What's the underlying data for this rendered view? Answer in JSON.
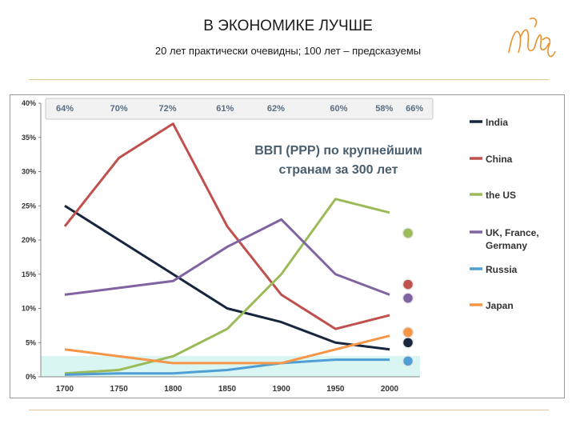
{
  "header": {
    "title": "В ЭКОНОМИКЕ ЛУЧШЕ",
    "subtitle": "20 лет практически очевидны; 100 лет – предсказуемы"
  },
  "chart_data": {
    "type": "line",
    "title": "ВВП (PPP) по крупнейшим странам за 300 лет",
    "x": [
      1700,
      1750,
      1800,
      1850,
      1900,
      1950,
      2000
    ],
    "ylim": [
      0,
      40
    ],
    "yticks": [
      "0%",
      "5%",
      "10%",
      "15%",
      "20%",
      "25%",
      "30%",
      "35%",
      "40%"
    ],
    "xticks": [
      "1700",
      "1750",
      "1800",
      "1850",
      "1900",
      "1950",
      "2000"
    ],
    "top_shares": [
      {
        "x": 1700,
        "label": "64%"
      },
      {
        "x": 1750,
        "label": "70%"
      },
      {
        "x": 1795,
        "label": "72%"
      },
      {
        "x": 1848,
        "label": "61%"
      },
      {
        "x": 1895,
        "label": "62%"
      },
      {
        "x": 1953,
        "label": "60%"
      },
      {
        "x": 1995,
        "label": "58%"
      },
      {
        "x": 2023,
        "label": "66%"
      }
    ],
    "series": [
      {
        "name": "India",
        "color": "#17253d",
        "values": [
          25,
          20,
          15,
          10,
          8,
          5,
          4
        ],
        "projection": 5
      },
      {
        "name": "China",
        "color": "#c0504d",
        "values": [
          22,
          32,
          37,
          22,
          12,
          7,
          9
        ],
        "projection": 13.5
      },
      {
        "name": "the US",
        "color": "#9bbb59",
        "values": [
          0.5,
          1,
          3,
          7,
          15,
          26,
          24
        ],
        "projection": 21
      },
      {
        "name": "UK, France, Germany",
        "color": "#8064a2",
        "values": [
          12,
          13,
          14,
          19,
          23,
          15,
          12
        ],
        "projection": 11.5
      },
      {
        "name": "Russia",
        "color": "#4f9fd4",
        "values": [
          0.3,
          0.5,
          0.5,
          1,
          2,
          2.5,
          2.5
        ],
        "projection": 2.3
      },
      {
        "name": "Japan",
        "color": "#f79646",
        "values": [
          4,
          3,
          2,
          2,
          2,
          4,
          6
        ],
        "projection": 6.5
      }
    ]
  }
}
